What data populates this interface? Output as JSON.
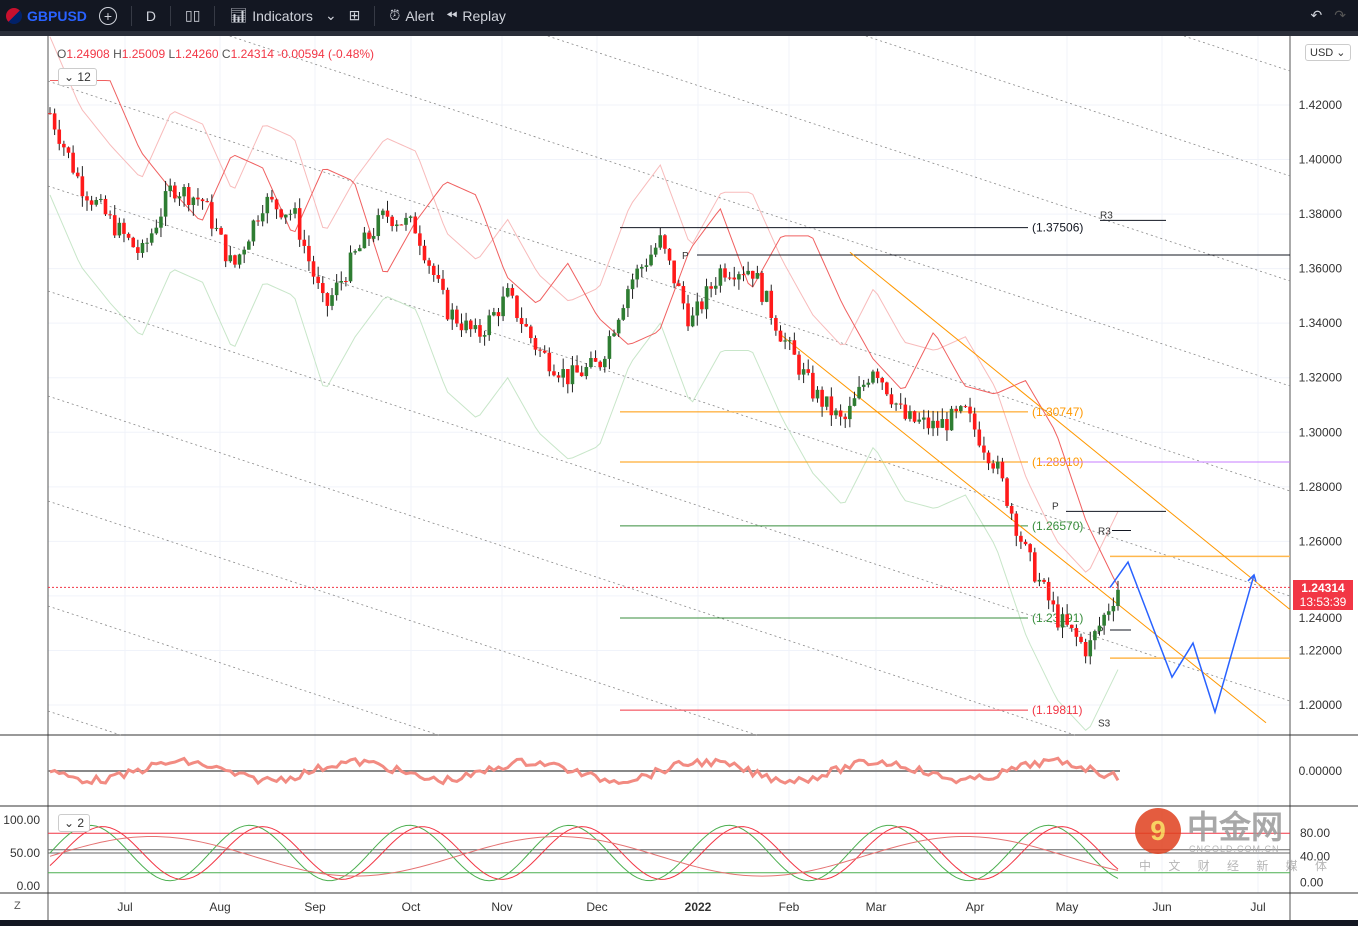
{
  "toolbar": {
    "symbol": "GBPUSD",
    "interval": "D",
    "indicators": "Indicators",
    "alert": "Alert",
    "replay": "Replay"
  },
  "legend": {
    "o_label": "O",
    "o": "1.24908",
    "h_label": "H",
    "h": "1.25009",
    "l_label": "L",
    "l": "1.24260",
    "c_label": "C",
    "c": "1.24314",
    "change": "-0.00594 (-0.48%)",
    "indicator_count": "12",
    "pane2_count": "2"
  },
  "currency": "USD",
  "last_price": {
    "value": "1.24314",
    "countdown": "13:53:39"
  },
  "price_axis": [
    "1.42000",
    "1.40000",
    "1.38000",
    "1.36000",
    "1.34000",
    "1.32000",
    "1.30000",
    "1.28000",
    "1.26000",
    "1.24000",
    "1.22000",
    "1.20000"
  ],
  "price_axis_values": [
    1.42,
    1.4,
    1.38,
    1.36,
    1.34,
    1.32,
    1.3,
    1.28,
    1.26,
    1.24,
    1.22,
    1.2
  ],
  "pane1_axis": [
    "0.00000"
  ],
  "pane2_axis": [
    "80.00",
    "40.00",
    "0.00"
  ],
  "pane2_left_axis": [
    "100.00",
    "50.00",
    "0.00"
  ],
  "time_axis": [
    "Jul",
    "Aug",
    "Sep",
    "Oct",
    "Nov",
    "Dec",
    "2022",
    "Feb",
    "Mar",
    "Apr",
    "May",
    "Jun",
    "Jul"
  ],
  "levels": [
    {
      "price": 1.37506,
      "label": "(1.37506)",
      "color": "#131722"
    },
    {
      "price": 1.30747,
      "label": "(1.30747)",
      "color": "#ff9800"
    },
    {
      "price": 1.2891,
      "label": "(1.28910)",
      "color": "#ff9800"
    },
    {
      "price": 1.2657,
      "label": "(1.26570)",
      "color": "#388e3c"
    },
    {
      "price": 1.23191,
      "label": "(1.23191)",
      "color": "#388e3c"
    },
    {
      "price": 1.19811,
      "label": "(1.19811)",
      "color": "#f23645"
    }
  ],
  "pivot_labels": [
    "P",
    "R3",
    "P",
    "R3",
    "P",
    "S3"
  ],
  "price_path": [
    1.417,
    1.391,
    1.377,
    1.365,
    1.39,
    1.385,
    1.36,
    1.385,
    1.38,
    1.345,
    1.365,
    1.38,
    1.375,
    1.345,
    1.335,
    1.35,
    1.33,
    1.32,
    1.325,
    1.355,
    1.37,
    1.34,
    1.36,
    1.36,
    1.335,
    1.315,
    1.303,
    1.325,
    1.305,
    1.302,
    1.307,
    1.288,
    1.255,
    1.232,
    1.22,
    1.243
  ],
  "projection_prices": [
    1.2431,
    1.2524,
    1.2102,
    1.2227,
    1.1974,
    1.2477
  ],
  "colors": {
    "up": "#089981",
    "up_alt": "#2e7d32",
    "down": "#f23645",
    "projection": "#2962ff",
    "orange": "#ff9800",
    "violet": "#c77dff"
  },
  "watermark": {
    "name": "中金网",
    "domain": "CNGOLD.COM.CN",
    "tagline": "中 文 财 经 新 媒 体"
  },
  "z_label": "Z"
}
